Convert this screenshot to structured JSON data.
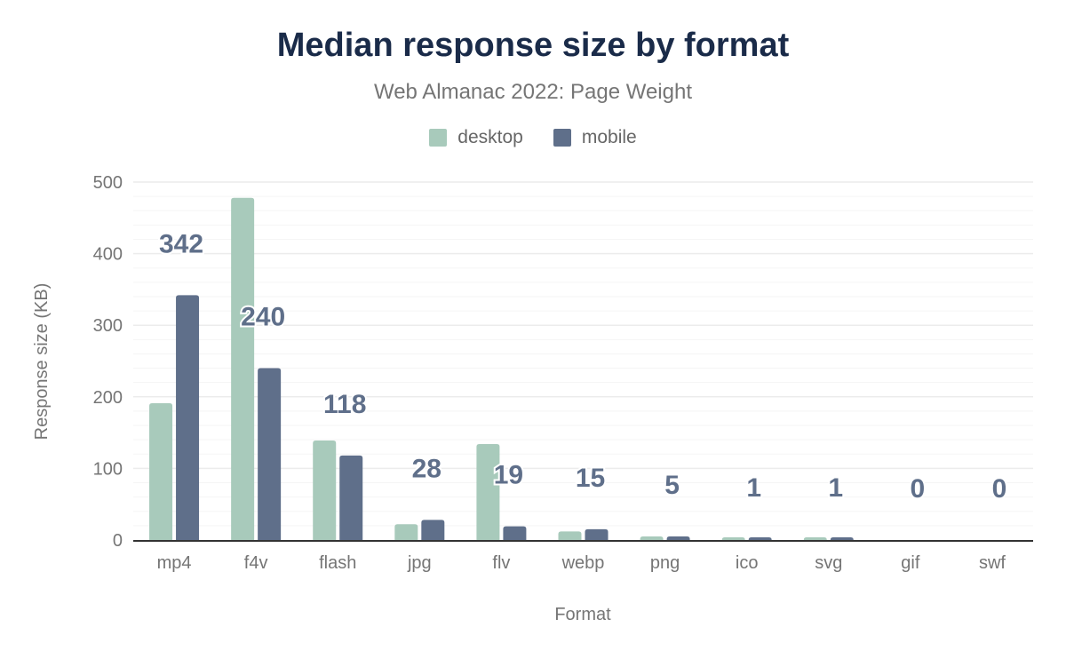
{
  "chart_data": {
    "type": "bar",
    "title": "Median response size by format",
    "subtitle": "Web Almanac 2022: Page Weight",
    "xlabel": "Format",
    "ylabel": "Response size (KB)",
    "ylim": [
      0,
      500
    ],
    "yticks": [
      0,
      100,
      200,
      300,
      400,
      500
    ],
    "grid": true,
    "legend_position": "top",
    "categories": [
      "mp4",
      "f4v",
      "flash",
      "jpg",
      "flv",
      "webp",
      "png",
      "ico",
      "svg",
      "gif",
      "swf"
    ],
    "series": [
      {
        "name": "desktop",
        "color": "#a8cabb",
        "values": [
          191,
          478,
          139,
          22,
          134,
          12,
          5,
          1,
          1,
          0,
          0
        ]
      },
      {
        "name": "mobile",
        "color": "#5f6f8a",
        "values": [
          342,
          240,
          118,
          28,
          19,
          15,
          5,
          1,
          1,
          0,
          0
        ],
        "data_labels": true
      }
    ]
  }
}
